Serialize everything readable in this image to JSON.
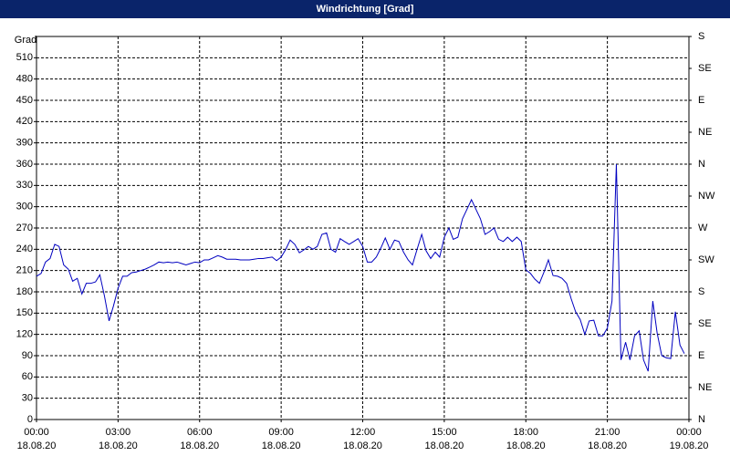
{
  "chart_data": {
    "type": "line",
    "title": "Windrichtung [Grad]",
    "y_label": "Grad",
    "grid": true,
    "xlim": [
      0,
      24
    ],
    "ylim": [
      0,
      540
    ],
    "y2lim": [
      0,
      540
    ],
    "xticks": [
      {
        "value": 0,
        "label": "00:00",
        "date": "18.08.20"
      },
      {
        "value": 3,
        "label": "03:00",
        "date": "18.08.20"
      },
      {
        "value": 6,
        "label": "06:00",
        "date": "18.08.20"
      },
      {
        "value": 9,
        "label": "09:00",
        "date": "18.08.20"
      },
      {
        "value": 12,
        "label": "12:00",
        "date": "18.08.20"
      },
      {
        "value": 15,
        "label": "15:00",
        "date": "18.08.20"
      },
      {
        "value": 18,
        "label": "18:00",
        "date": "18.08.20"
      },
      {
        "value": 21,
        "label": "21:00",
        "date": "18.08.20"
      },
      {
        "value": 24,
        "label": "00:00",
        "date": "19.08.20"
      }
    ],
    "yticks": [
      0,
      30,
      60,
      90,
      120,
      150,
      180,
      210,
      240,
      270,
      300,
      330,
      360,
      390,
      420,
      450,
      480,
      510
    ],
    "y2ticks": [
      {
        "value": 0,
        "label": "N"
      },
      {
        "value": 45,
        "label": "NE"
      },
      {
        "value": 90,
        "label": "E"
      },
      {
        "value": 135,
        "label": "SE"
      },
      {
        "value": 180,
        "label": "S"
      },
      {
        "value": 225,
        "label": "SW"
      },
      {
        "value": 270,
        "label": "W"
      },
      {
        "value": 315,
        "label": "NW"
      },
      {
        "value": 360,
        "label": "N"
      },
      {
        "value": 405,
        "label": "NE"
      },
      {
        "value": 450,
        "label": "E"
      },
      {
        "value": 495,
        "label": "SE"
      },
      {
        "value": 540,
        "label": "S"
      }
    ],
    "color": "#0000c0",
    "x": [
      0,
      0.17,
      0.33,
      0.5,
      0.67,
      0.83,
      1,
      1.17,
      1.33,
      1.5,
      1.67,
      1.83,
      2,
      2.17,
      2.33,
      2.5,
      2.67,
      2.83,
      3,
      3.17,
      3.33,
      3.5,
      3.67,
      3.83,
      4,
      4.17,
      4.33,
      4.5,
      4.67,
      4.83,
      5,
      5.17,
      5.33,
      5.5,
      5.67,
      5.83,
      6,
      6.17,
      6.33,
      6.5,
      6.67,
      6.83,
      7,
      7.17,
      7.33,
      7.5,
      7.67,
      7.83,
      8,
      8.17,
      8.33,
      8.5,
      8.67,
      8.83,
      9,
      9.17,
      9.33,
      9.5,
      9.67,
      9.83,
      10,
      10.17,
      10.33,
      10.5,
      10.67,
      10.83,
      11,
      11.17,
      11.33,
      11.5,
      11.67,
      11.83,
      12,
      12.17,
      12.33,
      12.5,
      12.67,
      12.83,
      13,
      13.17,
      13.33,
      13.5,
      13.67,
      13.83,
      14,
      14.17,
      14.33,
      14.5,
      14.67,
      14.83,
      15,
      15.17,
      15.33,
      15.5,
      15.67,
      15.83,
      16,
      16.17,
      16.33,
      16.5,
      16.67,
      16.83,
      17,
      17.17,
      17.33,
      17.5,
      17.67,
      17.83,
      18,
      18.17,
      18.33,
      18.5,
      18.67,
      18.83,
      19,
      19.17,
      19.33,
      19.5,
      19.67,
      19.83,
      20,
      20.17,
      20.33,
      20.5,
      20.67,
      20.83,
      21,
      21.17,
      21.33,
      21.5,
      21.67,
      21.83,
      22,
      22.17,
      22.33,
      22.5,
      22.67,
      22.83,
      23,
      23.17,
      23.33,
      23.5,
      23.67,
      23.83
    ],
    "values": [
      202,
      206,
      222,
      227,
      247,
      244,
      218,
      212,
      195,
      199,
      177,
      192,
      192,
      194,
      204,
      174,
      139,
      160,
      185,
      202,
      202,
      207,
      208,
      210,
      212,
      215,
      218,
      222,
      221,
      222,
      221,
      222,
      220,
      218,
      220,
      222,
      221,
      225,
      225,
      228,
      231,
      229,
      226,
      226,
      226,
      225,
      225,
      225,
      226,
      227,
      227,
      228,
      229,
      224,
      229,
      240,
      253,
      247,
      235,
      239,
      244,
      240,
      244,
      261,
      263,
      240,
      236,
      255,
      251,
      247,
      251,
      255,
      244,
      222,
      222,
      229,
      242,
      256,
      240,
      253,
      251,
      236,
      225,
      218,
      240,
      261,
      238,
      227,
      236,
      229,
      257,
      270,
      254,
      257,
      283,
      296,
      310,
      296,
      283,
      261,
      265,
      270,
      254,
      251,
      257,
      251,
      257,
      251,
      211,
      206,
      198,
      192,
      208,
      225,
      203,
      202,
      199,
      192,
      170,
      152,
      141,
      120,
      139,
      140,
      118,
      118,
      129,
      167,
      360,
      84,
      109,
      84,
      118,
      125,
      84,
      68,
      167,
      122,
      90,
      87,
      86,
      152,
      105,
      93
    ]
  }
}
